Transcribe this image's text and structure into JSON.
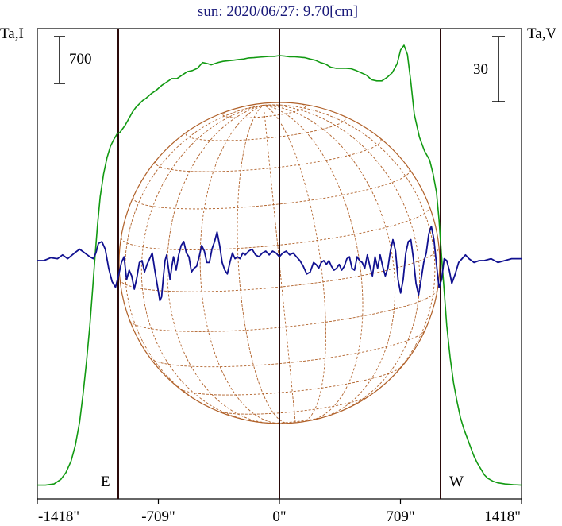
{
  "chart_data": {
    "type": "line",
    "title": "sun: 2020/06/27: 9.70[cm]",
    "left_axis_label": "Ta,I",
    "right_axis_label": "Ta,V",
    "left_scale_bar": "700",
    "right_scale_bar": "30",
    "limb_labels": {
      "east": "E",
      "west": "W"
    },
    "x_tick_labels": [
      "-1418\"",
      "-709\"",
      "0\"",
      "709\"",
      "1418\""
    ],
    "x_tick_values": [
      -1418,
      -709,
      0,
      709,
      1418
    ],
    "xlim": [
      -1418,
      1418
    ],
    "limb_positions": [
      -920,
      0,
      920
    ],
    "grid": false,
    "colors": {
      "title": "#1a1a7a",
      "stokes_I": "#129a12",
      "stokes_V": "#101090",
      "disk": "#b06028",
      "limb_lines": "#2a0a0a",
      "axes": "#000000"
    },
    "series": [
      {
        "key": "stokes_I",
        "ylim": [
          0,
          1920
        ],
        "x": [
          -1418,
          -1370,
          -1320,
          -1280,
          -1250,
          -1220,
          -1195,
          -1170,
          -1150,
          -1130,
          -1110,
          -1095,
          -1080,
          -1065,
          -1050,
          -1030,
          -1010,
          -990,
          -970,
          -950,
          -935,
          -920,
          -905,
          -890,
          -875,
          -860,
          -840,
          -820,
          -800,
          -780,
          -750,
          -720,
          -690,
          -660,
          -630,
          -600,
          -570,
          -540,
          -510,
          -480,
          -450,
          -420,
          -400,
          -380,
          -360,
          -330,
          -300,
          -270,
          -240,
          -210,
          -180,
          -150,
          -120,
          -90,
          -60,
          -30,
          0,
          30,
          60,
          90,
          120,
          150,
          180,
          210,
          240,
          270,
          300,
          330,
          360,
          390,
          420,
          450,
          480,
          510,
          540,
          570,
          600,
          630,
          660,
          690,
          710,
          730,
          750,
          770,
          790,
          820,
          850,
          880,
          900,
          920,
          935,
          950,
          965,
          980,
          1000,
          1020,
          1040,
          1060,
          1080,
          1100,
          1120,
          1140,
          1160,
          1180,
          1200,
          1220,
          1250,
          1280,
          1320,
          1370,
          1418
        ],
        "y": [
          5,
          5,
          10,
          30,
          60,
          110,
          180,
          280,
          400,
          540,
          700,
          850,
          1000,
          1140,
          1260,
          1360,
          1430,
          1480,
          1510,
          1535,
          1540,
          1555,
          1570,
          1590,
          1610,
          1630,
          1650,
          1665,
          1680,
          1690,
          1710,
          1725,
          1745,
          1760,
          1775,
          1775,
          1790,
          1805,
          1810,
          1820,
          1845,
          1840,
          1835,
          1840,
          1845,
          1850,
          1853,
          1855,
          1858,
          1860,
          1865,
          1866,
          1868,
          1870,
          1872,
          1872,
          1875,
          1873,
          1870,
          1870,
          1868,
          1866,
          1860,
          1855,
          1845,
          1838,
          1825,
          1820,
          1820,
          1820,
          1818,
          1810,
          1800,
          1790,
          1770,
          1765,
          1765,
          1780,
          1800,
          1840,
          1900,
          1920,
          1880,
          1760,
          1620,
          1520,
          1460,
          1420,
          1360,
          1280,
          1160,
          1000,
          850,
          700,
          560,
          450,
          370,
          300,
          250,
          210,
          170,
          130,
          100,
          75,
          50,
          35,
          22,
          15,
          10,
          7,
          5
        ]
      },
      {
        "key": "stokes_V",
        "ylim": [
          -160,
          160
        ],
        "x": [
          -1418,
          -1380,
          -1340,
          -1300,
          -1270,
          -1240,
          -1200,
          -1170,
          -1140,
          -1110,
          -1090,
          -1075,
          -1060,
          -1040,
          -1020,
          -1000,
          -980,
          -960,
          -940,
          -925,
          -910,
          -895,
          -880,
          -865,
          -850,
          -835,
          -820,
          -805,
          -790,
          -775,
          -760,
          -745,
          -730,
          -715,
          -700,
          -690,
          -680,
          -670,
          -660,
          -650,
          -640,
          -630,
          -620,
          -605,
          -590,
          -575,
          -560,
          -545,
          -530,
          -515,
          -500,
          -485,
          -470,
          -455,
          -440,
          -425,
          -410,
          -395,
          -380,
          -365,
          -350,
          -335,
          -320,
          -305,
          -290,
          -275,
          -260,
          -245,
          -230,
          -215,
          -200,
          -180,
          -160,
          -140,
          -120,
          -100,
          -80,
          -60,
          -40,
          -20,
          0,
          20,
          40,
          60,
          80,
          100,
          120,
          140,
          160,
          180,
          200,
          215,
          230,
          245,
          260,
          275,
          290,
          305,
          320,
          335,
          350,
          365,
          380,
          395,
          410,
          425,
          440,
          455,
          470,
          485,
          500,
          515,
          530,
          545,
          560,
          575,
          590,
          605,
          620,
          635,
          650,
          665,
          680,
          695,
          710,
          725,
          740,
          755,
          770,
          785,
          800,
          815,
          830,
          845,
          860,
          875,
          890,
          905,
          920,
          935,
          950,
          965,
          980,
          995,
          1010,
          1030,
          1050,
          1070,
          1090,
          1110,
          1140,
          1170,
          1200,
          1240,
          1280,
          1320,
          1360,
          1418
        ],
        "y": [
          0,
          0,
          3,
          2,
          6,
          2,
          8,
          12,
          8,
          4,
          2,
          8,
          18,
          20,
          12,
          -8,
          -22,
          -28,
          -14,
          -2,
          4,
          -20,
          -10,
          -16,
          -30,
          -18,
          -2,
          0,
          -12,
          -4,
          2,
          8,
          -10,
          -26,
          -42,
          -38,
          -18,
          0,
          6,
          -8,
          -20,
          -6,
          4,
          -10,
          6,
          16,
          20,
          8,
          4,
          -12,
          -8,
          -6,
          4,
          16,
          10,
          -2,
          -2,
          12,
          20,
          30,
          16,
          -2,
          -10,
          -14,
          -2,
          8,
          2,
          4,
          2,
          8,
          6,
          10,
          12,
          6,
          4,
          8,
          10,
          6,
          10,
          8,
          4,
          8,
          10,
          6,
          8,
          4,
          0,
          -6,
          -14,
          -12,
          -2,
          -4,
          -8,
          -2,
          0,
          -4,
          0,
          -6,
          -10,
          -8,
          -4,
          -10,
          -6,
          2,
          4,
          -8,
          -10,
          4,
          0,
          -2,
          -8,
          6,
          -6,
          -16,
          4,
          -8,
          6,
          -6,
          -16,
          -8,
          10,
          22,
          10,
          -20,
          -34,
          -20,
          8,
          20,
          22,
          2,
          -24,
          -36,
          -20,
          -2,
          8,
          28,
          36,
          22,
          -4,
          -28,
          -20,
          2,
          0,
          -10,
          -24,
          -14,
          -2,
          2,
          6,
          2,
          -2,
          0,
          0,
          2,
          -2,
          0,
          2,
          2
        ]
      }
    ]
  }
}
